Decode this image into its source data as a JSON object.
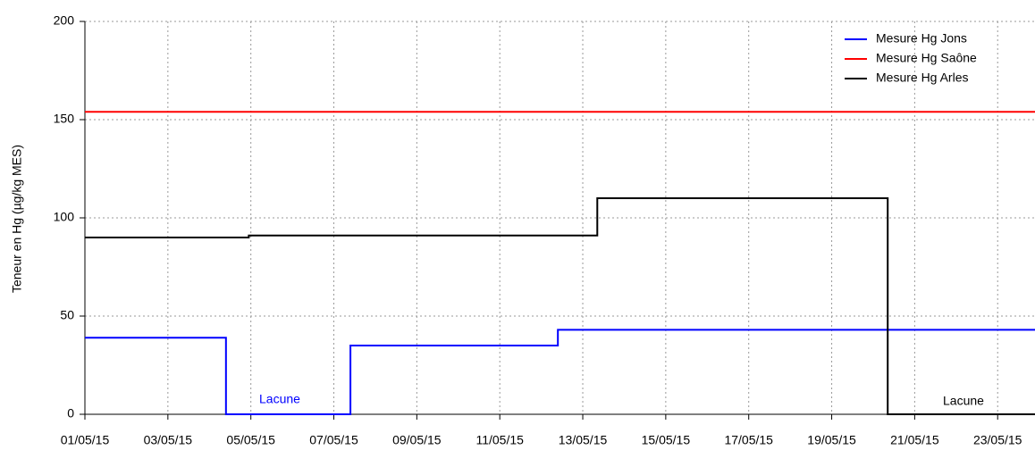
{
  "chart_data": {
    "type": "line",
    "step": true,
    "ylabel": "Teneur en Hg (µg/kg MES)",
    "xlim": [
      1,
      23.9
    ],
    "ylim": [
      0,
      200
    ],
    "yticks": [
      0,
      50,
      100,
      150,
      200
    ],
    "xticks": [
      {
        "value": 1,
        "label": "01/05/15"
      },
      {
        "value": 3,
        "label": "03/05/15"
      },
      {
        "value": 5,
        "label": "05/05/15"
      },
      {
        "value": 7,
        "label": "07/05/15"
      },
      {
        "value": 9,
        "label": "09/05/15"
      },
      {
        "value": 11,
        "label": "11/05/15"
      },
      {
        "value": 13,
        "label": "13/05/15"
      },
      {
        "value": 15,
        "label": "15/05/15"
      },
      {
        "value": 17,
        "label": "17/05/15"
      },
      {
        "value": 19,
        "label": "19/05/15"
      },
      {
        "value": 21,
        "label": "21/05/15"
      },
      {
        "value": 23,
        "label": "23/05/15"
      }
    ],
    "grid": true,
    "legend": "upper right",
    "series": [
      {
        "name": "Mesure Hg Jons",
        "color": "#0000ff",
        "x": [
          1,
          4.4,
          4.4,
          7.4,
          7.4,
          12.4,
          12.4,
          23.9
        ],
        "values": [
          39,
          39,
          0,
          0,
          35,
          35,
          43,
          43
        ]
      },
      {
        "name": "Mesure Hg Saône",
        "color": "#ff0000",
        "x": [
          1,
          23.9
        ],
        "values": [
          154,
          154
        ]
      },
      {
        "name": "Mesure Hg Arles",
        "color": "#000000",
        "x": [
          1,
          4.95,
          4.95,
          13.35,
          13.35,
          20.35,
          20.35,
          23.9
        ],
        "values": [
          90,
          90,
          91,
          91,
          110,
          110,
          0,
          0
        ]
      }
    ],
    "annotations": [
      {
        "text": "Lacune",
        "color": "#0000ff"
      },
      {
        "text": "Lacune",
        "color": "#000000"
      }
    ]
  }
}
